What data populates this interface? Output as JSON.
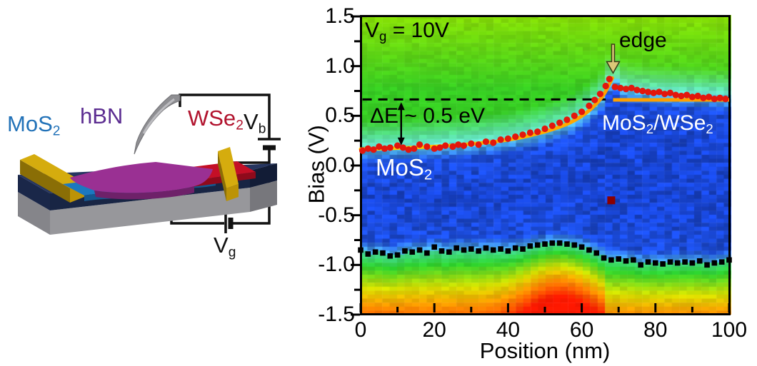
{
  "schematic": {
    "labels": {
      "mos2": {
        "base": "MoS",
        "sub": "2",
        "color": "#2272B8"
      },
      "hbn": {
        "text": "hBN",
        "color": "#5C2D91"
      },
      "wse2": {
        "base": "WSe",
        "sub": "2",
        "color": "#B1122D"
      },
      "vb": {
        "base": "V",
        "sub": "b",
        "color": "#111111"
      },
      "vg": {
        "base": "V",
        "sub": "g",
        "color": "#111111"
      }
    }
  },
  "plot": {
    "annotations": {
      "gate_voltage": {
        "base": "V",
        "sub": "g",
        "rest": " = 10V"
      },
      "delta_e": "ΔE ~ 0.5 eV",
      "region_left": {
        "base": "MoS",
        "sub": "2"
      },
      "region_right": {
        "p1": "MoS",
        "s1": "2",
        "p2": "/WSe",
        "s2": "2"
      },
      "edge": "edge"
    }
  },
  "chart_data": {
    "type": "heatmap",
    "xlabel": "Position (nm)",
    "ylabel": "Bias (V)",
    "xlim": [
      0,
      100
    ],
    "ylim": [
      -1.5,
      1.5
    ],
    "x_tick_labels": [
      "0",
      "20",
      "40",
      "60",
      "80",
      "100"
    ],
    "x_tick_values": [
      0,
      20,
      40,
      60,
      80,
      100
    ],
    "x_minor_ticks": [
      10,
      30,
      50,
      70,
      90
    ],
    "y_tick_labels": [
      "1.5",
      "1.0",
      "0.5",
      "0.0",
      "-0.5",
      "-1.0",
      "-1.5"
    ],
    "y_tick_values": [
      1.5,
      1.0,
      0.5,
      0.0,
      -0.5,
      -1.0,
      -1.5
    ],
    "y_minor_ticks": [
      1.25,
      0.75,
      0.25,
      -0.25,
      -0.75,
      -1.25
    ],
    "colormap_note": "rainbow dI/dV map: blue=low (gap), green/yellow/red=high",
    "colors": {
      "dots": "#E3170D",
      "squares": "#000000",
      "outlier": "#8B0000",
      "fit_line_start": "#FFD800",
      "fit_line_end": "#FF9E00",
      "flat_line": "#FFA000",
      "dashed_line": "#000000",
      "edge_arrow_fill": "#DCC878",
      "edge_arrow_stroke": "#3A3A18",
      "heat_blue": "#1E50D8",
      "heat_green": "#37CD23",
      "heat_yellow_top": "#96E100",
      "heat_cyan": "#5FE0D8",
      "heat_red": "#FF3200"
    },
    "conduction_band_dots": [
      [
        0.5,
        0.15
      ],
      [
        2,
        0.17
      ],
      [
        3.5,
        0.16
      ],
      [
        5,
        0.19
      ],
      [
        6.5,
        0.17
      ],
      [
        8,
        0.18
      ],
      [
        10,
        0.2
      ],
      [
        11.5,
        0.18
      ],
      [
        13,
        0.16
      ],
      [
        14.5,
        0.17
      ],
      [
        16,
        0.21
      ],
      [
        18,
        0.19
      ],
      [
        20,
        0.17
      ],
      [
        21.5,
        0.18
      ],
      [
        23,
        0.2
      ],
      [
        25,
        0.19
      ],
      [
        26.5,
        0.21
      ],
      [
        28,
        0.2
      ],
      [
        30,
        0.22
      ],
      [
        32,
        0.21
      ],
      [
        34,
        0.24
      ],
      [
        36,
        0.23
      ],
      [
        38,
        0.26
      ],
      [
        40,
        0.27
      ],
      [
        42,
        0.29
      ],
      [
        44,
        0.31
      ],
      [
        46,
        0.33
      ],
      [
        48,
        0.34
      ],
      [
        50,
        0.37
      ],
      [
        52,
        0.4
      ],
      [
        54,
        0.43
      ],
      [
        56,
        0.46
      ],
      [
        58,
        0.5
      ],
      [
        60,
        0.54
      ],
      [
        62,
        0.6
      ],
      [
        63.5,
        0.66
      ],
      [
        65,
        0.72
      ],
      [
        66.5,
        0.8
      ],
      [
        67.5,
        0.87
      ],
      [
        69,
        0.79
      ],
      [
        70.5,
        0.78
      ],
      [
        72,
        0.77
      ],
      [
        73.5,
        0.78
      ],
      [
        75,
        0.76
      ],
      [
        76.5,
        0.75
      ],
      [
        78,
        0.74
      ],
      [
        79.5,
        0.73
      ],
      [
        81,
        0.74
      ],
      [
        82.5,
        0.72
      ],
      [
        84,
        0.73
      ],
      [
        85.5,
        0.71
      ],
      [
        87,
        0.7
      ],
      [
        88.5,
        0.71
      ],
      [
        90,
        0.69
      ],
      [
        91.5,
        0.7
      ],
      [
        93,
        0.68
      ],
      [
        94.5,
        0.69
      ],
      [
        96,
        0.67
      ],
      [
        97.5,
        0.68
      ],
      [
        99,
        0.67
      ]
    ],
    "valence_band_squares": [
      [
        0,
        -0.85
      ],
      [
        2,
        -0.89
      ],
      [
        4,
        -0.87
      ],
      [
        6,
        -0.88
      ],
      [
        8,
        -0.91
      ],
      [
        10,
        -0.9
      ],
      [
        12,
        -0.86
      ],
      [
        14,
        -0.87
      ],
      [
        16,
        -0.85
      ],
      [
        18,
        -0.88
      ],
      [
        20,
        -0.82
      ],
      [
        22,
        -0.86
      ],
      [
        24,
        -0.87
      ],
      [
        26,
        -0.83
      ],
      [
        28,
        -0.85
      ],
      [
        30,
        -0.84
      ],
      [
        32,
        -0.86
      ],
      [
        34,
        -0.83
      ],
      [
        36,
        -0.85
      ],
      [
        38,
        -0.84
      ],
      [
        40,
        -0.86
      ],
      [
        42,
        -0.83
      ],
      [
        44,
        -0.84
      ],
      [
        46,
        -0.81
      ],
      [
        48,
        -0.8
      ],
      [
        50,
        -0.79
      ],
      [
        52,
        -0.78
      ],
      [
        54,
        -0.78
      ],
      [
        56,
        -0.79
      ],
      [
        58,
        -0.8
      ],
      [
        60,
        -0.82
      ],
      [
        62,
        -0.85
      ],
      [
        64,
        -0.88
      ],
      [
        66,
        -0.93
      ],
      [
        68,
        -0.95
      ],
      [
        70,
        -0.94
      ],
      [
        72,
        -0.96
      ],
      [
        74,
        -0.95
      ],
      [
        76,
        -1.0
      ],
      [
        78,
        -0.97
      ],
      [
        80,
        -0.98
      ],
      [
        82,
        -0.99
      ],
      [
        84,
        -0.97
      ],
      [
        86,
        -0.98
      ],
      [
        88,
        -0.97
      ],
      [
        90,
        -0.98
      ],
      [
        92,
        -0.96
      ],
      [
        94,
        -1.0
      ],
      [
        96,
        -0.98
      ],
      [
        98,
        -0.97
      ],
      [
        100,
        -0.95
      ]
    ],
    "fit_curve": [
      [
        0,
        0.165
      ],
      [
        10,
        0.175
      ],
      [
        20,
        0.19
      ],
      [
        30,
        0.215
      ],
      [
        40,
        0.255
      ],
      [
        46,
        0.3
      ],
      [
        52,
        0.36
      ],
      [
        57,
        0.43
      ],
      [
        61,
        0.52
      ],
      [
        64,
        0.62
      ],
      [
        66,
        0.71
      ],
      [
        67.5,
        0.82
      ],
      [
        68.3,
        0.88
      ]
    ],
    "cb_right_boundary": [
      [
        69,
        0.78
      ],
      [
        72,
        0.75
      ],
      [
        80,
        0.72
      ],
      [
        90,
        0.7
      ],
      [
        100,
        0.68
      ]
    ],
    "flat_guide_line": {
      "y": 0.66,
      "x1": 68.5,
      "x2": 100
    },
    "dashed_reference_line": {
      "y": 0.665,
      "x1": 0.5,
      "x2": 66.5
    },
    "delta_arrow": {
      "x": 11,
      "y_top": 0.63,
      "y_bottom": 0.21
    },
    "edge_arrow": {
      "x": 68.5,
      "y_top": 1.22,
      "y_bottom": 0.93
    },
    "outlier_marker": {
      "x": 68,
      "y": -0.35
    }
  }
}
